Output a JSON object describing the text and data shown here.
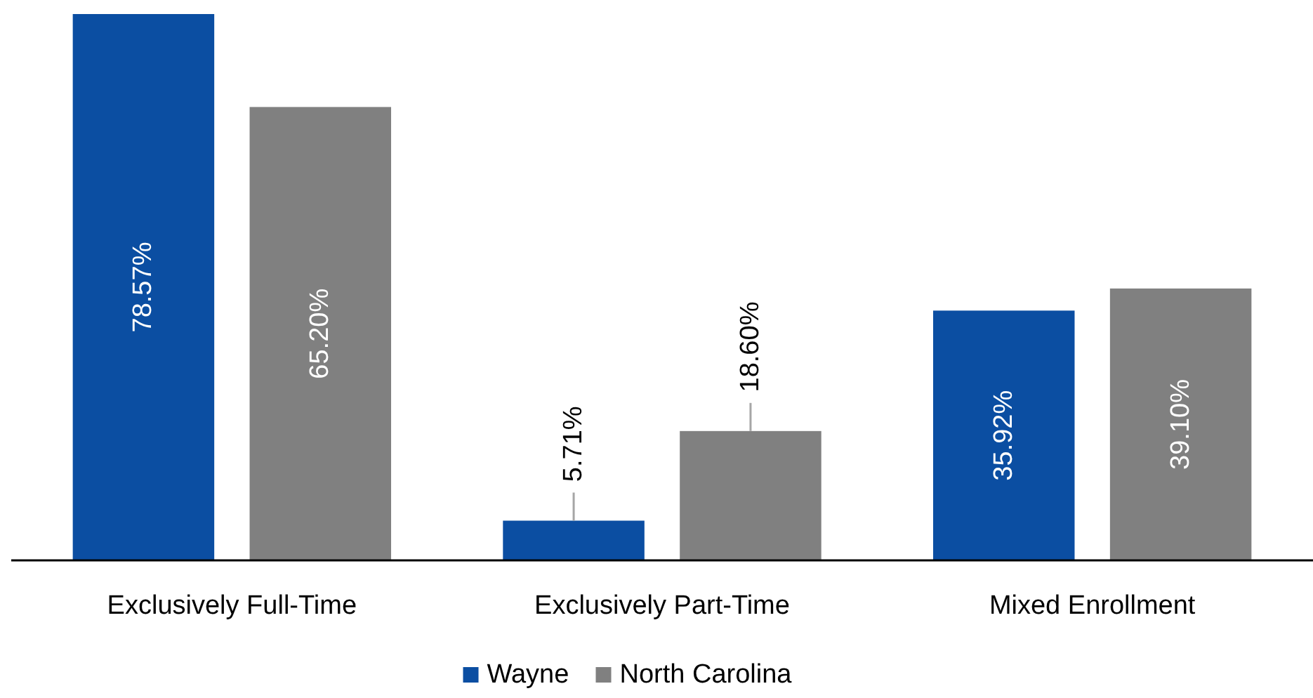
{
  "chart_data": {
    "type": "bar",
    "categories": [
      "Exclusively Full-Time",
      "Exclusively Part-Time",
      "Mixed Enrollment"
    ],
    "series": [
      {
        "name": "Wayne",
        "color": "#0b4ea2",
        "values": [
          78.57,
          5.71,
          35.92
        ],
        "value_labels": [
          "78.57%",
          "5.71%",
          "35.92%"
        ]
      },
      {
        "name": "North Carolina",
        "color": "#808080",
        "values": [
          65.2,
          18.6,
          39.1
        ],
        "value_labels": [
          "65.20%",
          "18.60%",
          "39.10%"
        ]
      }
    ],
    "legend": "bottom"
  }
}
